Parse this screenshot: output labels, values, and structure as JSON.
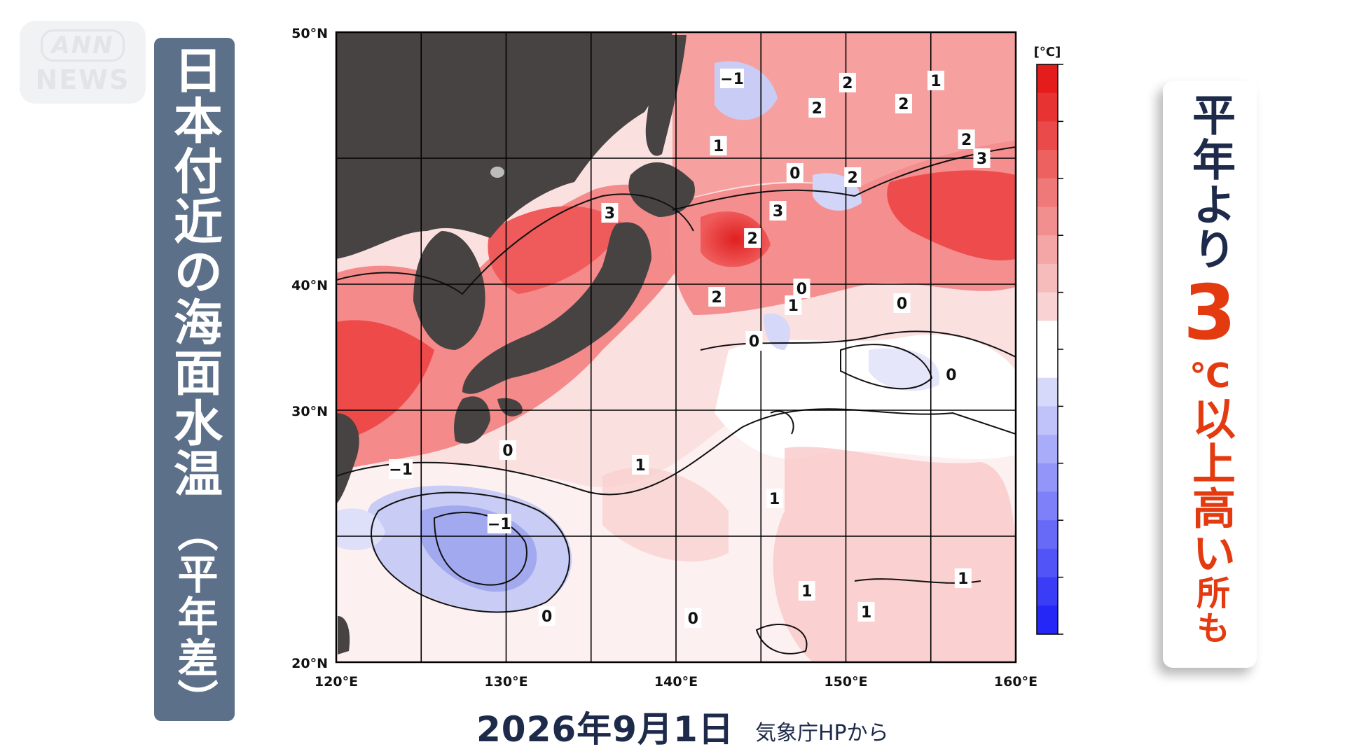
{
  "logo": {
    "line1": "ANN",
    "line2": "NEWS"
  },
  "title": {
    "main": "日本付近の海面水温",
    "sub": "（平年差）"
  },
  "map": {
    "lat_labels": [
      "50°N",
      "40°N",
      "30°N",
      "20°N"
    ],
    "lon_labels": [
      "120°E",
      "130°E",
      "140°E",
      "150°E",
      "160°E"
    ],
    "colorbar": {
      "unit": "[°C]",
      "ticks": [
        "5",
        "4",
        "3",
        "2",
        "1",
        "0",
        "−1",
        "−2",
        "−3",
        "−4",
        "−5"
      ]
    },
    "contour_labels": [
      {
        "text": "−1",
        "lon": 143.3,
        "lat": 47.8
      },
      {
        "text": "2",
        "lon": 150.1,
        "lat": 47.6
      },
      {
        "text": "1",
        "lon": 155.3,
        "lat": 47.7
      },
      {
        "text": "2",
        "lon": 148.3,
        "lat": 46.4
      },
      {
        "text": "2",
        "lon": 153.4,
        "lat": 46.6
      },
      {
        "text": "1",
        "lon": 142.5,
        "lat": 44.6
      },
      {
        "text": "2",
        "lon": 157.1,
        "lat": 44.9
      },
      {
        "text": "3",
        "lon": 158.0,
        "lat": 44.0
      },
      {
        "text": "0",
        "lon": 147.0,
        "lat": 43.3
      },
      {
        "text": "2",
        "lon": 150.4,
        "lat": 43.1
      },
      {
        "text": "3",
        "lon": 136.1,
        "lat": 41.4
      },
      {
        "text": "3",
        "lon": 146.0,
        "lat": 41.5
      },
      {
        "text": "2",
        "lon": 144.5,
        "lat": 40.2
      },
      {
        "text": "2",
        "lon": 142.4,
        "lat": 37.4
      },
      {
        "text": "0",
        "lon": 147.4,
        "lat": 37.8
      },
      {
        "text": "1",
        "lon": 146.9,
        "lat": 37.0
      },
      {
        "text": "0",
        "lon": 153.3,
        "lat": 37.1
      },
      {
        "text": "0",
        "lon": 144.6,
        "lat": 35.3
      },
      {
        "text": "0",
        "lon": 156.2,
        "lat": 33.7
      },
      {
        "text": "0",
        "lon": 130.1,
        "lat": 30.1
      },
      {
        "text": "−1",
        "lon": 123.8,
        "lat": 29.2
      },
      {
        "text": "1",
        "lon": 137.9,
        "lat": 29.4
      },
      {
        "text": "1",
        "lon": 145.8,
        "lat": 27.8
      },
      {
        "text": "−1",
        "lon": 129.6,
        "lat": 26.6
      },
      {
        "text": "1",
        "lon": 147.7,
        "lat": 23.4
      },
      {
        "text": "1",
        "lon": 156.9,
        "lat": 24.0
      },
      {
        "text": "0",
        "lon": 132.4,
        "lat": 22.2
      },
      {
        "text": "0",
        "lon": 141.0,
        "lat": 22.1
      },
      {
        "text": "1",
        "lon": 151.2,
        "lat": 22.4
      }
    ]
  },
  "date": "2026年9月1日",
  "source": "気象庁HPから",
  "callout": {
    "line1": "平年より",
    "big": "3",
    "unit": "℃",
    "line2": "以上",
    "line3": "高い",
    "line4": "所",
    "line5": "も"
  },
  "colors": {
    "title_bg": "#5d7089",
    "land": "#474343",
    "warm_strong": "#ef3a3a",
    "warm_weak": "#fad4d4",
    "cool": "#9ca4f0",
    "accent_red": "#e33a10"
  }
}
